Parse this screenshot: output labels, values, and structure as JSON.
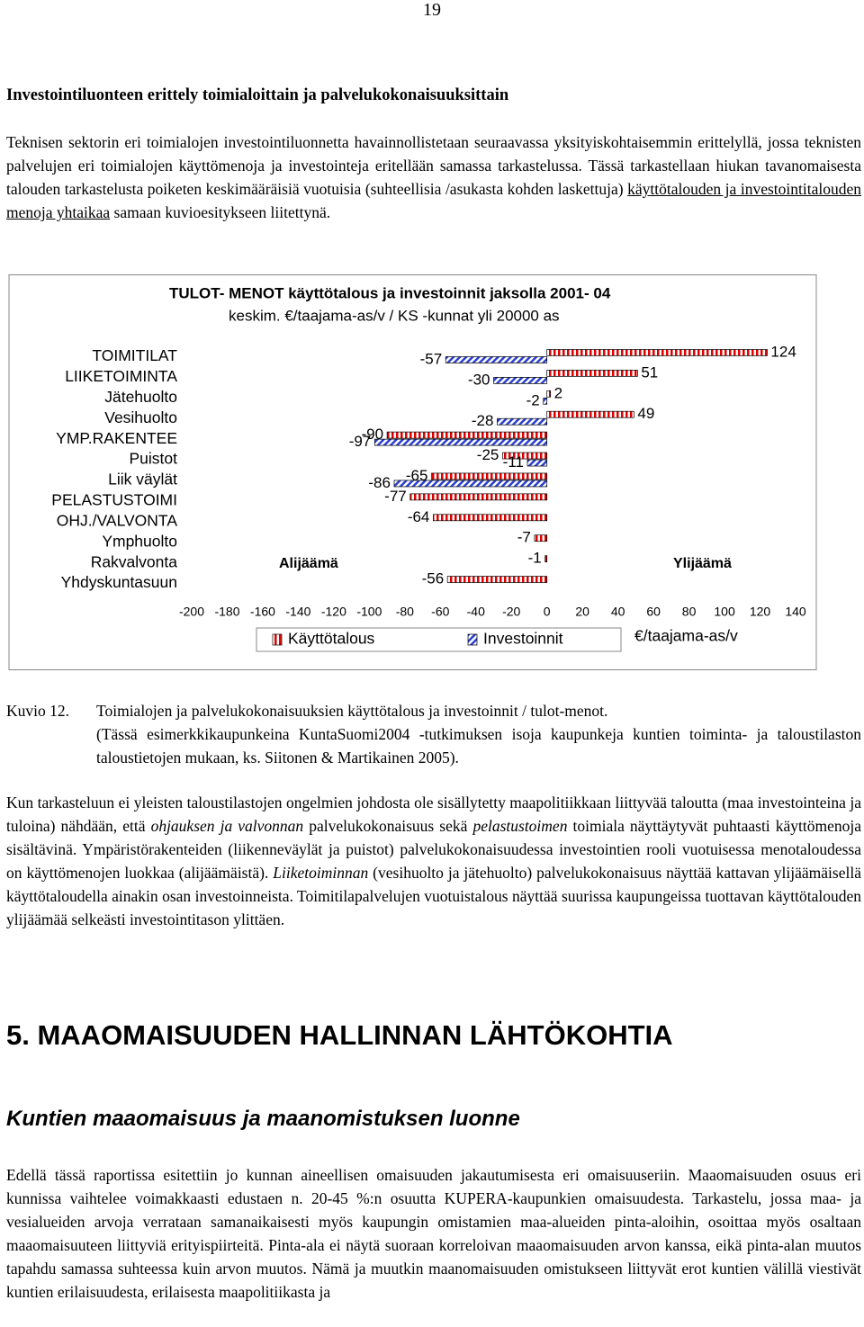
{
  "page_number": "19",
  "heading": "Investointiluonteen erittely toimialoittain ja palvelukokonaisuuksittain",
  "paragraph_1": [
    "Teknisen sektorin eri toimialojen investointiluonnetta havainnollistetaan seuraavassa yksityiskohtaisemmin erittelyllä, jossa teknisten palvelujen eri toimialojen käyttömenoja ja investointeja eritellään samassa tarkastelussa. Tässä tarkastellaan hiukan tavanomaisesta talouden tarkastelusta poiketen keskimääräisiä vuotuisia (suhteellisia /asukasta kohden laskettuja) ",
    "käyttötalouden ja investointitalouden menoja yhtaikaa",
    " samaan kuvioesitykseen liitettynä."
  ],
  "chart_data": {
    "type": "bar",
    "orientation": "horizontal",
    "title": "TULOT- MENOT  käyttötalous ja investoinnit jaksolla 2001- 04",
    "subtitle": "keskim. €/taajama-as/v  / KS -kunnat  yli 20000 as",
    "categories": [
      "TOIMITILAT",
      "LIIKETOIMINTA",
      "Jätehuolto",
      "Vesihuolto",
      "YMP.RAKENTEE",
      "Puistot",
      "Liik väylät",
      "PELASTUSTOIMI",
      "OHJ./VALVONTA",
      "Ymphuolto",
      "Rakvalvonta",
      "Yhdyskuntasuun"
    ],
    "series": [
      {
        "name": "Käyttötalous",
        "color": "#e00000",
        "values": [
          124,
          51,
          2,
          49,
          -90,
          -25,
          -65,
          -77,
          -64,
          -7,
          -1,
          -56
        ]
      },
      {
        "name": "Investoinnit",
        "color": "#2a3fd0",
        "values": [
          -57,
          -30,
          -2,
          -28,
          -97,
          -11,
          -86,
          null,
          null,
          null,
          null,
          null
        ]
      }
    ],
    "xlim": [
      -200,
      140
    ],
    "xticks": [
      -200,
      -180,
      -160,
      -140,
      -120,
      -100,
      -80,
      -60,
      -40,
      -20,
      0,
      20,
      40,
      60,
      80,
      100,
      120,
      140
    ],
    "x_label": "€/taajama-as/v",
    "annotations": [
      "Alijäämä",
      "Ylijäämä"
    ]
  },
  "caption": {
    "label": "Kuvio 12.",
    "lines": [
      "Toimialojen ja palvelukokonaisuuksien käyttötalous ja investoinnit / tulot-menot.",
      "(Tässä esimerkkikaupunkeina KuntaSuomi2004 -tutkimuksen isoja kaupunkeja kuntien toiminta- ja taloustilaston taloustietojen mukaan, ks. Siitonen & Martikainen 2005)."
    ]
  },
  "paragraph_2": [
    "Kun tarkasteluun ei yleisten taloustilastojen ongelmien johdosta ole sisällytetty maapolitiikkaan liittyvää taloutta (maa investointeina ja tuloina) nähdään, että ",
    "ohjauksen ja valvonnan",
    " palvelukokonaisuus sekä ",
    "pelastustoimen",
    " toimiala näyttäytyvät puhtaasti käyttömenoja sisältävinä. Ympäristörakenteiden (liikenneväylät ja puistot) palvelukokonaisuudessa investointien rooli vuotuisessa menotaloudessa on käyttömenojen luokkaa (alijäämäistä). ",
    "Liiketoiminnan",
    " (vesihuolto ja jätehuolto) palvelukokonaisuus näyttää kattavan ylijäämäisellä käyttötaloudella ainakin osan investoinneista. Toimitilapalvelujen vuotuistalous näyttää suurissa kaupungeissa tuottavan käyttötalouden ylijäämää selkeästi investointitason ylittäen."
  ],
  "section_heading": "5. MAAOMAISUUDEN HALLINNAN LÄHTÖKOHTIA",
  "subheading": "Kuntien maaomaisuus ja maanomistuksen luonne",
  "paragraph_3": "Edellä tässä raportissa esitettiin jo kunnan aineellisen omaisuuden jakautumisesta eri omaisuuseriin. Maaomaisuuden osuus eri kunnissa vaihtelee voimakkaasti edustaen n. 20-45 %:n osuutta KUPERA-kaupunkien omaisuudesta. Tarkastelu, jossa maa- ja vesialueiden arvoja verrataan samanaikaisesti myös kaupungin omistamien maa-alueiden pinta-aloihin, osoittaa myös osaltaan maaomaisuuteen liittyviä erityispiirteitä. Pinta-ala ei näytä suoraan korreloivan maaomaisuuden arvon kanssa, eikä pinta-alan muutos tapahdu samassa suhteessa kuin arvon muutos. Nämä ja muutkin maanomaisuuden omistukseen liittyvät erot kuntien välillä viestivät kuntien erilaisuudesta, erilaisesta maapolitiikasta ja"
}
